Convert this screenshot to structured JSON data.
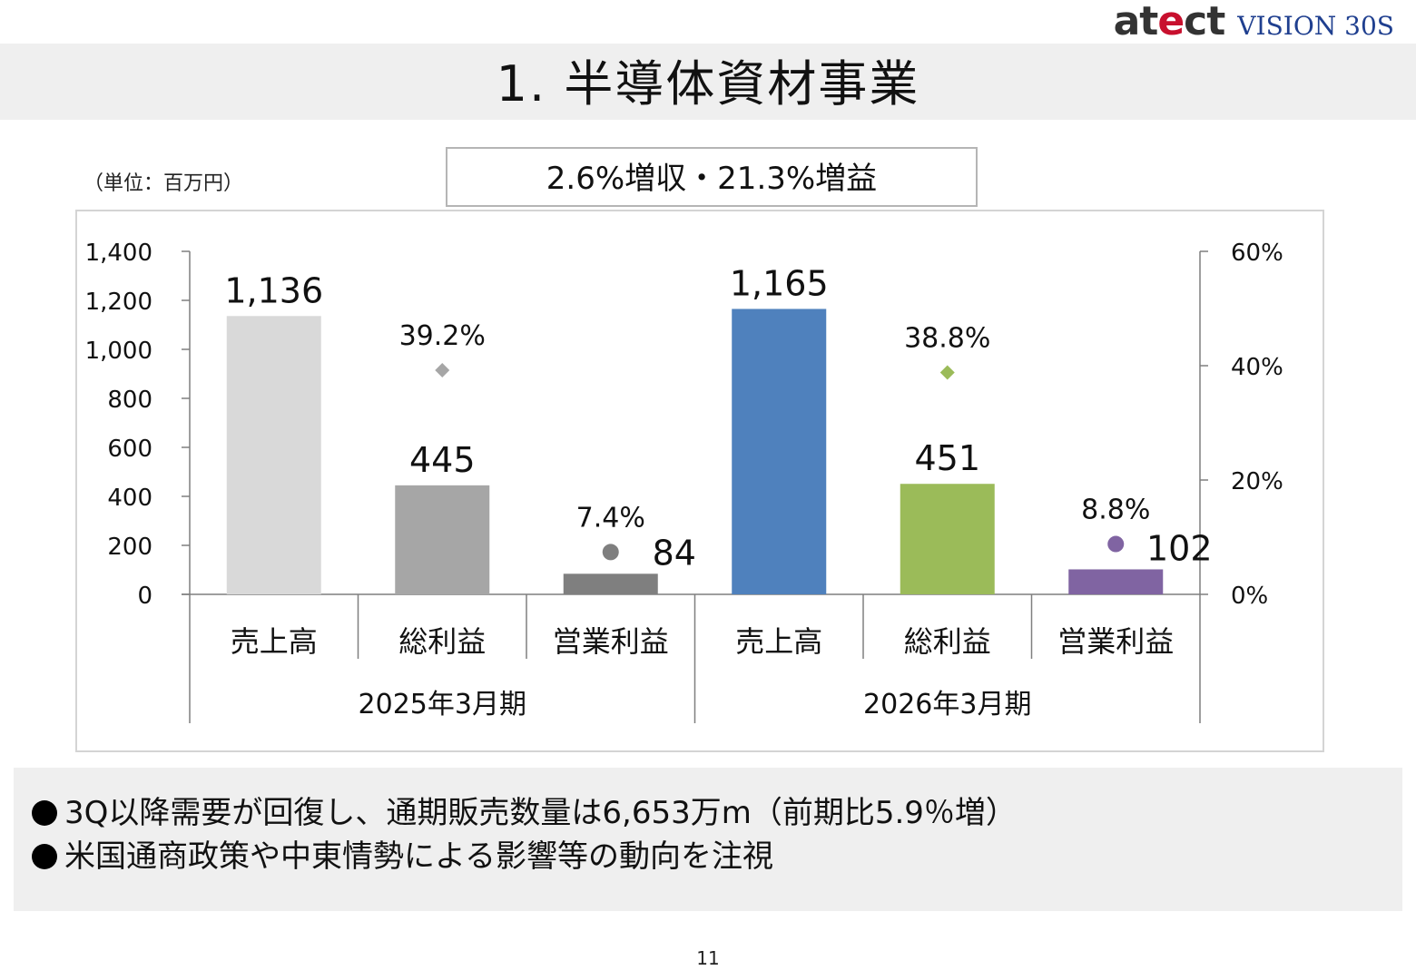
{
  "header": {
    "logo_main_prefix": "at",
    "logo_main_accent": "e",
    "logo_main_suffix": "ct",
    "logo_sub": "VISION 30S",
    "page_title": "1. 半導体資材事業"
  },
  "unit_label": "（単位：百万円）",
  "headline": "2.6%増収・21.3%増益",
  "chart_data": {
    "type": "bar",
    "primary_axis": {
      "min": 0,
      "max": 1400,
      "ticks": [
        "0",
        "200",
        "400",
        "600",
        "800",
        "1,000",
        "1,200",
        "1,400"
      ],
      "tick_values": [
        0,
        200,
        400,
        600,
        800,
        1000,
        1200,
        1400
      ]
    },
    "secondary_axis": {
      "min": 0,
      "max": 60,
      "ticks": [
        "0%",
        "20%",
        "40%",
        "60%"
      ],
      "tick_values": [
        0,
        20,
        40,
        60
      ]
    },
    "groups": [
      {
        "label": "2025年3月期",
        "bars": [
          {
            "category": "売上高",
            "value": 1136,
            "label": "1,136",
            "color": "#d9d9d9"
          },
          {
            "category": "総利益",
            "value": 445,
            "label": "445",
            "color": "#a6a6a6",
            "margin": 39.2,
            "margin_label": "39.2%",
            "marker": "diamond",
            "marker_color": "#a6a6a6"
          },
          {
            "category": "営業利益",
            "value": 84,
            "label": "84",
            "color": "#7f7f7f",
            "margin": 7.4,
            "margin_label": "7.4%",
            "marker": "circle",
            "marker_color": "#7f7f7f"
          }
        ]
      },
      {
        "label": "2026年3月期",
        "bars": [
          {
            "category": "売上高",
            "value": 1165,
            "label": "1,165",
            "color": "#4f81bd"
          },
          {
            "category": "総利益",
            "value": 451,
            "label": "451",
            "color": "#9bbb59",
            "margin": 38.8,
            "margin_label": "38.8%",
            "marker": "diamond",
            "marker_color": "#9bbb59"
          },
          {
            "category": "営業利益",
            "value": 102,
            "label": "102",
            "color": "#8064a2",
            "margin": 8.8,
            "margin_label": "8.8%",
            "marker": "circle",
            "marker_color": "#8064a2"
          }
        ]
      }
    ]
  },
  "notes": [
    "3Q以降需要が回復し、通期販売数量は6,653万m（前期比5.9％増）",
    "米国通商政策や中東情勢による影響等の動向を注視"
  ],
  "page_number": "11"
}
